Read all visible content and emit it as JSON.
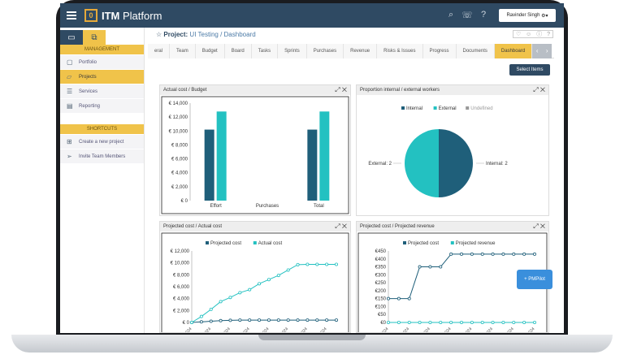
{
  "app": {
    "title_bold": "ITM",
    "title_rest": " Platform",
    "logo_letter": "0"
  },
  "topbar": {
    "icons": [
      "search-icon",
      "chat-icon",
      "help-icon"
    ],
    "user": "Ravinder Singh"
  },
  "sidebar": {
    "management_label": "MANAGEMENT",
    "items": [
      {
        "label": "Portfolio",
        "icon": "folder-icon"
      },
      {
        "label": "Projects",
        "icon": "folder-open-icon"
      },
      {
        "label": "Services",
        "icon": "list-icon"
      },
      {
        "label": "Reporting",
        "icon": "report-icon"
      }
    ],
    "shortcuts_label": "SHORTCUTS",
    "shortcuts": [
      {
        "label": "Create a new project",
        "icon": "plus-icon"
      },
      {
        "label": "Invite Team Members",
        "icon": "send-icon"
      }
    ]
  },
  "project": {
    "prefix": "Project:",
    "path": " UI Testing / Dashboard"
  },
  "tabs": [
    "eral",
    "Team",
    "Budget",
    "Board",
    "Tasks",
    "Sprints",
    "Purchases",
    "Revenue",
    "Risks & Issues",
    "Progress",
    "Documents",
    "Dashboard"
  ],
  "select_items": "Select Items",
  "pmpilot": "PMPilot",
  "widgets": {
    "w1": "Actual cost / Budget",
    "w2": "Proportion internal / external workers",
    "w3": "Projected cost / Actual cost",
    "w4": "Projected cost / Projected revenue"
  },
  "colors": {
    "primary": "#1f5f7a",
    "secondary": "#23c1c1",
    "accent": "#f0c34a",
    "nav": "#2f4a63"
  },
  "chart_data": [
    {
      "type": "bar",
      "title": "Actual cost / Budget",
      "categories": [
        "Effort",
        "Purchases",
        "Total"
      ],
      "series": [
        {
          "values": [
            10200,
            0,
            10200
          ]
        },
        {
          "values": [
            12800,
            0,
            12800
          ]
        }
      ],
      "yticks": [
        "€ 14,000",
        "€ 12,000",
        "€ 10,000",
        "€ 8,000",
        "€ 6,000",
        "€ 4,000",
        "€ 2,000",
        "€ 0"
      ],
      "ylim": [
        0,
        14000
      ]
    },
    {
      "type": "pie",
      "title": "Proportion internal / external workers",
      "legend": [
        "Internal",
        "External",
        "Undefined"
      ],
      "slices": [
        {
          "name": "Internal",
          "value": 2,
          "label": "Internal: 2"
        },
        {
          "name": "External",
          "value": 2,
          "label": "External: 2"
        }
      ]
    },
    {
      "type": "line",
      "title": "Projected cost / Actual cost",
      "legend": [
        "Projected cost",
        "Actual cost"
      ],
      "yticks": [
        "€ 12,000",
        "€ 10,000",
        "€ 8,000",
        "€ 6,000",
        "€ 4,000",
        "€ 2,000",
        "€ 0"
      ],
      "ylim": [
        0,
        12000
      ],
      "xlabel_tick": "2024",
      "series": [
        {
          "name": "Projected cost",
          "values": [
            0,
            100,
            200,
            300,
            350,
            400,
            400,
            400,
            400,
            400,
            400,
            400,
            400,
            400,
            400,
            400
          ]
        },
        {
          "name": "Actual cost",
          "values": [
            0,
            1000,
            2200,
            3500,
            4200,
            5000,
            5500,
            6500,
            7200,
            7900,
            8800,
            9700,
            9750,
            9750,
            9750,
            9750
          ]
        }
      ]
    },
    {
      "type": "line",
      "title": "Projected cost / Projected revenue",
      "legend": [
        "Projected cost",
        "Projected revenue"
      ],
      "yticks": [
        "€450",
        "€400",
        "€350",
        "€300",
        "€250",
        "€200",
        "€150",
        "€100",
        "€50",
        "€0"
      ],
      "ylim": [
        0,
        450
      ],
      "xlabel_tick": "2024",
      "series": [
        {
          "name": "Projected cost",
          "values": [
            150,
            150,
            150,
            350,
            350,
            350,
            430,
            430,
            430,
            430,
            430,
            430,
            430,
            430,
            430
          ]
        },
        {
          "name": "Projected revenue",
          "values": [
            0,
            0,
            0,
            0,
            0,
            0,
            0,
            0,
            0,
            0,
            0,
            0,
            0,
            0,
            0
          ]
        }
      ]
    }
  ]
}
